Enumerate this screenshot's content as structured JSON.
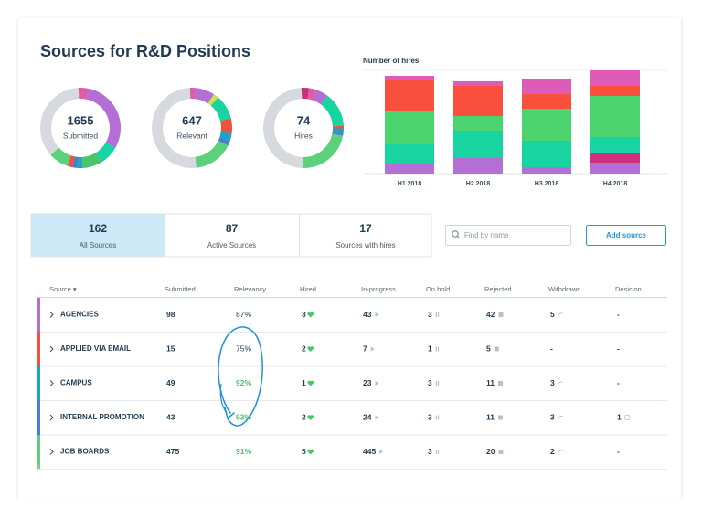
{
  "header": {
    "title": "Sources for R&D Positions"
  },
  "donuts": [
    {
      "value": "1655",
      "label": "Submitted",
      "segments": [
        {
          "color": "#e05aa8",
          "value": 4
        },
        {
          "color": "#b46fd6",
          "value": 30
        },
        {
          "color": "#17d4a0",
          "value": 8
        },
        {
          "color": "#4cc46a",
          "value": 8
        },
        {
          "color": "#17a6c4",
          "value": 2
        },
        {
          "color": "#4a7fc9",
          "value": 2
        },
        {
          "color": "#f0503c",
          "value": 2
        },
        {
          "color": "#5cd07a",
          "value": 8
        }
      ]
    },
    {
      "value": "647",
      "label": "Relevant",
      "segments": [
        {
          "color": "#e05aa8",
          "value": 2
        },
        {
          "color": "#b46fd6",
          "value": 8
        },
        {
          "color": "#d4e04a",
          "value": 2
        },
        {
          "color": "#17d4a0",
          "value": 10
        },
        {
          "color": "#f0503c",
          "value": 6
        },
        {
          "color": "#17a6c4",
          "value": 3
        },
        {
          "color": "#4a7fc9",
          "value": 2
        },
        {
          "color": "#5cd07a",
          "value": 16
        }
      ]
    },
    {
      "value": "74",
      "label": "Hires",
      "segments": [
        {
          "color": "#c8307a",
          "value": 3
        },
        {
          "color": "#e05aa8",
          "value": 3
        },
        {
          "color": "#b46fd6",
          "value": 5
        },
        {
          "color": "#17d4a0",
          "value": 14
        },
        {
          "color": "#f0503c",
          "value": 1
        },
        {
          "color": "#17a6c4",
          "value": 2
        },
        {
          "color": "#4a7fc9",
          "value": 1
        },
        {
          "color": "#5cd07a",
          "value": 22
        }
      ]
    }
  ],
  "hires_chart": {
    "type": "bar",
    "title": "Number of hires",
    "categories": [
      "H1 2018",
      "H2 2018",
      "H3 2018",
      "H4 2018"
    ],
    "series": [
      {
        "color": "#b46fd6",
        "values": [
          10,
          17,
          7,
          12
        ]
      },
      {
        "color": "#d0307e",
        "values": [
          0,
          0,
          0,
          10
        ]
      },
      {
        "color": "#17d4a0",
        "values": [
          22,
          30,
          29,
          18
        ]
      },
      {
        "color": "#4cd46e",
        "values": [
          36,
          16,
          35,
          45
        ]
      },
      {
        "color": "#f8503c",
        "values": [
          34,
          33,
          16,
          11
        ]
      },
      {
        "color": "#e05ab8",
        "values": [
          5,
          5,
          17,
          17
        ]
      }
    ]
  },
  "tabs": [
    {
      "value": "162",
      "label": "All Sources"
    },
    {
      "value": "87",
      "label": "Active Sources"
    },
    {
      "value": "17",
      "label": "Sources with hires"
    }
  ],
  "search": {
    "placeholder": "Find by name"
  },
  "button": {
    "label": "Add source"
  },
  "table": {
    "columns": [
      "Source ▾",
      "Submitted",
      "Relevancy",
      "Hired",
      "In-progress",
      "On hold",
      "Rejected",
      "Withdrawn",
      "Desicion"
    ],
    "rows": [
      {
        "color": "#b46fd6",
        "cells": [
          "AGENCIES",
          "98",
          "87%",
          "3",
          "43",
          "3",
          "42",
          "5",
          "-"
        ]
      },
      {
        "color": "#f0503c",
        "cells": [
          "APPLIED VIA EMAIL",
          "15",
          "75%",
          "2",
          "7",
          "1",
          "5",
          "-",
          "-"
        ]
      },
      {
        "color": "#17a6c4",
        "cells": [
          "CAMPUS",
          "49",
          "92%",
          "1",
          "23",
          "3",
          "11",
          "3",
          "-"
        ]
      },
      {
        "color": "#4a7fc9",
        "cells": [
          "INTERNAL PROMOTION",
          "43",
          "93%",
          "2",
          "24",
          "3",
          "11",
          "3",
          "1"
        ]
      },
      {
        "color": "#5cd07a",
        "cells": [
          "JOB BOARDS",
          "475",
          "91%",
          "5",
          "445",
          "3",
          "20",
          "2",
          "-"
        ]
      }
    ]
  }
}
